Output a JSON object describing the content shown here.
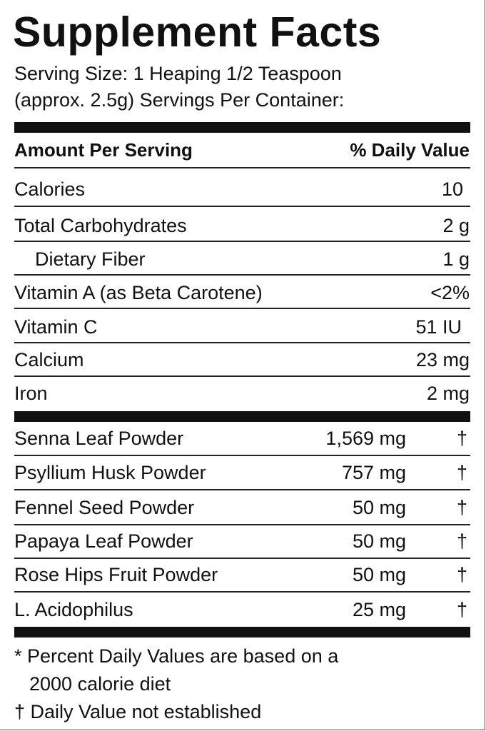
{
  "title": "Supplement Facts",
  "serving": [
    "Serving Size: 1 Heaping 1/2 Teaspoon",
    "(approx. 2.5g)  Servings Per Container:"
  ],
  "header": {
    "left": "Amount Per Serving",
    "right": "% Daily Value"
  },
  "nutrients": [
    {
      "name": "Calories",
      "amount": "10"
    },
    {
      "name": "Total Carbohydrates",
      "amount": "2 g"
    },
    {
      "name": "Dietary Fiber",
      "amount": "1 g"
    },
    {
      "name": "Vitamin A (as Beta Carotene)",
      "amount": "<2%"
    },
    {
      "name": "Vitamin C",
      "amount": "51 IU"
    },
    {
      "name": "Calcium",
      "amount": "23 mg"
    },
    {
      "name": "Iron",
      "amount": "2 mg"
    }
  ],
  "ingredients": [
    {
      "name": "Senna Leaf Powder",
      "amount": "1,569 mg",
      "dv": "†"
    },
    {
      "name": "Psyllium Husk Powder",
      "amount": "757 mg",
      "dv": "†"
    },
    {
      "name": "Fennel Seed Powder",
      "amount": "50 mg",
      "dv": "†"
    },
    {
      "name": "Papaya Leaf Powder",
      "amount": "50 mg",
      "dv": "†"
    },
    {
      "name": "Rose Hips Fruit Powder",
      "amount": "50 mg",
      "dv": "†"
    },
    {
      "name": "L. Acidophilus",
      "amount": "25 mg",
      "dv": "†"
    }
  ],
  "footnotes": [
    "* Percent Daily Values are based on a",
    "2000 calorie diet",
    "† Daily Value not established"
  ]
}
